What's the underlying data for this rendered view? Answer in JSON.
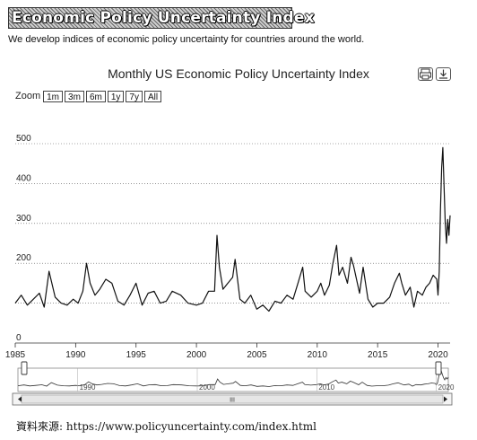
{
  "header": {
    "banner_title": "Economic Policy Uncertainty Index",
    "tagline": "We develop indices of economic policy uncertainty for countries around the world."
  },
  "chart_header": {
    "title": "Monthly US Economic Policy Uncertainty Index",
    "print_icon": "print-icon",
    "download_icon": "download-icon"
  },
  "zoom": {
    "label": "Zoom",
    "options": [
      "1m",
      "3m",
      "6m",
      "1y",
      "7y",
      "All"
    ]
  },
  "navigator": {
    "scroll_mark": "III",
    "labels": [
      "1990",
      "2000",
      "2010",
      "2020"
    ]
  },
  "source": "資料來源: https://www.policyuncertainty.com/index.html",
  "chart_data": {
    "type": "line",
    "title": "Monthly US Economic Policy Uncertainty Index",
    "xlabel": "",
    "ylabel": "",
    "xlim": [
      1985,
      2021
    ],
    "ylim": [
      0,
      500
    ],
    "y_ticks": [
      0,
      100,
      200,
      300,
      400,
      500
    ],
    "y_tick_labels": [
      "0",
      "",
      "200",
      "300",
      "400",
      "500"
    ],
    "x_ticks": [
      1985,
      1990,
      1995,
      2000,
      2005,
      2010,
      2015,
      2020
    ],
    "grid": "horizontal dashed",
    "series": [
      {
        "color": "#111111",
        "x": [
          1985.0,
          1985.5,
          1986.0,
          1986.5,
          1987.0,
          1987.4,
          1987.8,
          1988.3,
          1988.8,
          1989.3,
          1989.8,
          1990.2,
          1990.6,
          1990.9,
          1991.2,
          1991.6,
          1992.0,
          1992.5,
          1993.0,
          1993.5,
          1994.0,
          1994.5,
          1995.0,
          1995.5,
          1996.0,
          1996.5,
          1997.0,
          1997.5,
          1998.0,
          1998.7,
          1999.3,
          2000.0,
          2000.5,
          2001.0,
          2001.5,
          2001.7,
          2001.9,
          2002.2,
          2002.6,
          2003.0,
          2003.2,
          2003.6,
          2004.0,
          2004.5,
          2005.0,
          2005.5,
          2006.0,
          2006.5,
          2007.0,
          2007.5,
          2008.0,
          2008.4,
          2008.8,
          2009.0,
          2009.5,
          2010.0,
          2010.3,
          2010.6,
          2011.0,
          2011.3,
          2011.6,
          2011.8,
          2012.1,
          2012.5,
          2012.8,
          2013.0,
          2013.5,
          2013.8,
          2014.2,
          2014.6,
          2015.0,
          2015.5,
          2016.0,
          2016.4,
          2016.8,
          2017.0,
          2017.3,
          2017.7,
          2018.0,
          2018.3,
          2018.7,
          2019.0,
          2019.3,
          2019.6,
          2019.9,
          2020.0,
          2020.1,
          2020.2,
          2020.3,
          2020.4,
          2020.5,
          2020.6,
          2020.7,
          2020.8,
          2020.9,
          2021.0
        ],
        "y": [
          100,
          120,
          95,
          110,
          125,
          90,
          180,
          115,
          100,
          95,
          110,
          100,
          130,
          200,
          150,
          120,
          135,
          160,
          150,
          105,
          95,
          120,
          150,
          95,
          125,
          130,
          100,
          105,
          130,
          120,
          100,
          95,
          100,
          130,
          130,
          270,
          190,
          135,
          150,
          165,
          210,
          110,
          100,
          120,
          85,
          95,
          80,
          105,
          100,
          120,
          110,
          150,
          190,
          130,
          115,
          130,
          150,
          120,
          145,
          200,
          245,
          170,
          190,
          150,
          215,
          195,
          125,
          190,
          110,
          90,
          100,
          100,
          115,
          150,
          175,
          150,
          120,
          140,
          90,
          130,
          120,
          140,
          150,
          170,
          160,
          120,
          180,
          330,
          440,
          490,
          390,
          300,
          250,
          310,
          270,
          320
        ]
      }
    ]
  }
}
